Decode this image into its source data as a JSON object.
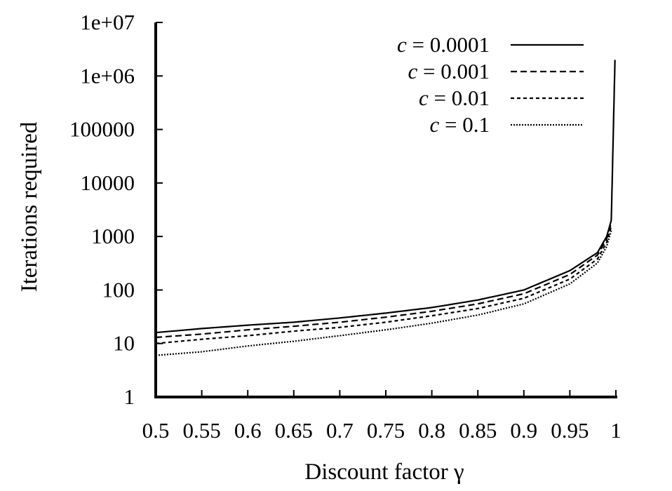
{
  "chart_data": {
    "type": "line",
    "xlabel": "Discount factor γ",
    "ylabel": "Iterations required",
    "xlim": [
      0.5,
      1.0
    ],
    "ylim": [
      1,
      10000000
    ],
    "yscale": "log",
    "grid": false,
    "legend_position": "top-right",
    "x_ticks": [
      {
        "value": 0.5,
        "label": "0.5"
      },
      {
        "value": 0.55,
        "label": "0.55"
      },
      {
        "value": 0.6,
        "label": "0.6"
      },
      {
        "value": 0.65,
        "label": "0.65"
      },
      {
        "value": 0.7,
        "label": "0.7"
      },
      {
        "value": 0.75,
        "label": "0.75"
      },
      {
        "value": 0.8,
        "label": "0.8"
      },
      {
        "value": 0.85,
        "label": "0.85"
      },
      {
        "value": 0.9,
        "label": "0.9"
      },
      {
        "value": 0.95,
        "label": "0.95"
      },
      {
        "value": 1.0,
        "label": "1"
      }
    ],
    "y_ticks": [
      {
        "value": 1,
        "label": "1"
      },
      {
        "value": 10,
        "label": "10"
      },
      {
        "value": 100,
        "label": "100"
      },
      {
        "value": 1000,
        "label": "1000"
      },
      {
        "value": 10000,
        "label": "10000"
      },
      {
        "value": 100000,
        "label": "100000"
      },
      {
        "value": 1000000,
        "label": "1e+06"
      },
      {
        "value": 10000000,
        "label": "1e+07"
      }
    ],
    "series": [
      {
        "name_prefix": "c",
        "name_value": "= 0.0001",
        "c": 0.0001,
        "dash": "solid",
        "x": [
          0.5,
          0.55,
          0.6,
          0.65,
          0.7,
          0.75,
          0.8,
          0.85,
          0.9,
          0.95,
          0.98,
          0.99,
          0.995,
          0.999
        ],
        "y": [
          16,
          19,
          22,
          25,
          30,
          37,
          47,
          65,
          100,
          230,
          500,
          1000,
          2000,
          2000000
        ]
      },
      {
        "name_prefix": "c",
        "name_value": "= 0.001",
        "c": 0.001,
        "dash": "dashed",
        "x": [
          0.5,
          0.55,
          0.6,
          0.65,
          0.7,
          0.75,
          0.8,
          0.85,
          0.9,
          0.95,
          0.98,
          0.99,
          0.995
        ],
        "y": [
          13,
          15,
          18,
          21,
          25,
          31,
          40,
          55,
          85,
          195,
          450,
          900,
          1800
        ]
      },
      {
        "name_prefix": "c",
        "name_value": "= 0.01",
        "c": 0.01,
        "dash": "short-dashed",
        "x": [
          0.5,
          0.55,
          0.6,
          0.65,
          0.7,
          0.75,
          0.8,
          0.85,
          0.9,
          0.95,
          0.98,
          0.99,
          0.995
        ],
        "y": [
          10,
          12,
          14,
          17,
          20,
          25,
          33,
          45,
          70,
          160,
          380,
          780,
          1550
        ]
      },
      {
        "name_prefix": "c",
        "name_value": "= 0.1",
        "c": 0.1,
        "dash": "dotted",
        "x": [
          0.5,
          0.55,
          0.6,
          0.65,
          0.7,
          0.75,
          0.8,
          0.85,
          0.9,
          0.95,
          0.98,
          0.99,
          0.995
        ],
        "y": [
          6,
          7,
          9,
          11,
          14,
          18,
          24,
          34,
          55,
          130,
          320,
          650,
          1300
        ]
      }
    ]
  }
}
